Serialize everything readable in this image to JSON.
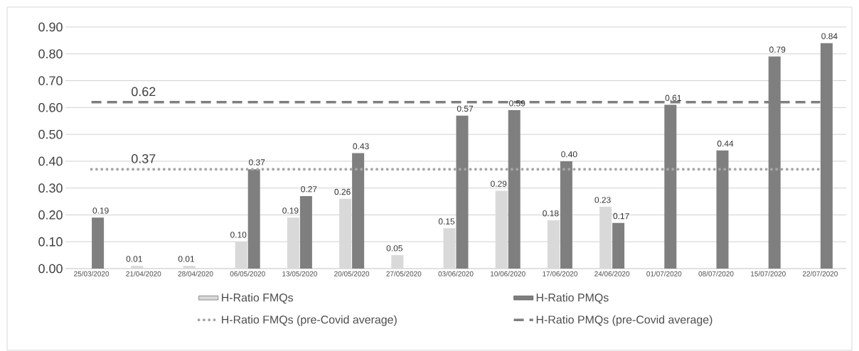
{
  "chart_data": {
    "type": "bar",
    "categories": [
      "25/03/2020",
      "21/04/2020",
      "28/04/2020",
      "06/05/2020",
      "13/05/2020",
      "20/05/2020",
      "27/05/2020",
      "03/06/2020",
      "10/06/2020",
      "17/06/2020",
      "24/06/2020",
      "01/07/2020",
      "08/07/2020",
      "15/07/2020",
      "22/07/2020"
    ],
    "series": [
      {
        "name": "H-Ratio FMQs",
        "color": "#d9d9d9",
        "values": [
          null,
          0.01,
          0.01,
          0.1,
          0.19,
          0.26,
          0.05,
          0.15,
          0.29,
          0.18,
          0.23,
          null,
          null,
          null,
          null
        ],
        "value_labels": [
          null,
          "0.01",
          "0.01",
          "0.10",
          "0.19",
          "0.26",
          "0.05",
          "0.15",
          "0.29",
          "0.18",
          "0.23",
          null,
          null,
          null,
          null
        ]
      },
      {
        "name": "H-Ratio PMQs",
        "color": "#7f7f7f",
        "values": [
          0.19,
          null,
          null,
          0.37,
          0.27,
          0.43,
          null,
          0.57,
          0.59,
          0.4,
          0.17,
          0.61,
          0.44,
          0.79,
          0.84
        ],
        "value_labels": [
          "0.19",
          null,
          null,
          "0.37",
          "0.27",
          "0.43",
          null,
          "0.57",
          "0.59",
          "0.40",
          "0.17",
          "0.61",
          "0.44",
          "0.79",
          "0.84"
        ]
      },
      {
        "name": "H-Ratio FMQs (pre-Covid average)",
        "type": "line",
        "line_style": "dotted",
        "color": "#a6a6a6",
        "values": [
          0.37,
          0.37,
          0.37,
          0.37,
          0.37,
          0.37,
          0.37,
          0.37,
          0.37,
          0.37,
          0.37,
          0.37,
          0.37,
          0.37,
          0.37
        ],
        "value_labels": [
          null,
          "0.37",
          null,
          null,
          null,
          null,
          null,
          null,
          null,
          null,
          null,
          null,
          null,
          null,
          null
        ]
      },
      {
        "name": "H-Ratio PMQs (pre-Covid average)",
        "type": "line",
        "line_style": "dashed",
        "color": "#7f7f7f",
        "values": [
          0.62,
          0.62,
          0.62,
          0.62,
          0.62,
          0.62,
          0.62,
          0.62,
          0.62,
          0.62,
          0.62,
          0.62,
          0.62,
          0.62,
          0.62
        ],
        "value_labels": [
          null,
          "0.62",
          null,
          null,
          null,
          null,
          null,
          null,
          null,
          null,
          null,
          null,
          null,
          null,
          null
        ]
      }
    ],
    "ylim": [
      0,
      0.9
    ],
    "yticks": [
      {
        "value": 0,
        "label": "0.00"
      },
      {
        "value": 0.1,
        "label": "0.10"
      },
      {
        "value": 0.2,
        "label": "0.20"
      },
      {
        "value": 0.3,
        "label": "0.30"
      },
      {
        "value": 0.4,
        "label": "0.40"
      },
      {
        "value": 0.5,
        "label": "0.50"
      },
      {
        "value": 0.6,
        "label": "0.60"
      },
      {
        "value": 0.7,
        "label": "0.70"
      },
      {
        "value": 0.8,
        "label": "0.80"
      },
      {
        "value": 0.9,
        "label": "0.90"
      }
    ],
    "grid": "y",
    "legend": "bottom"
  }
}
